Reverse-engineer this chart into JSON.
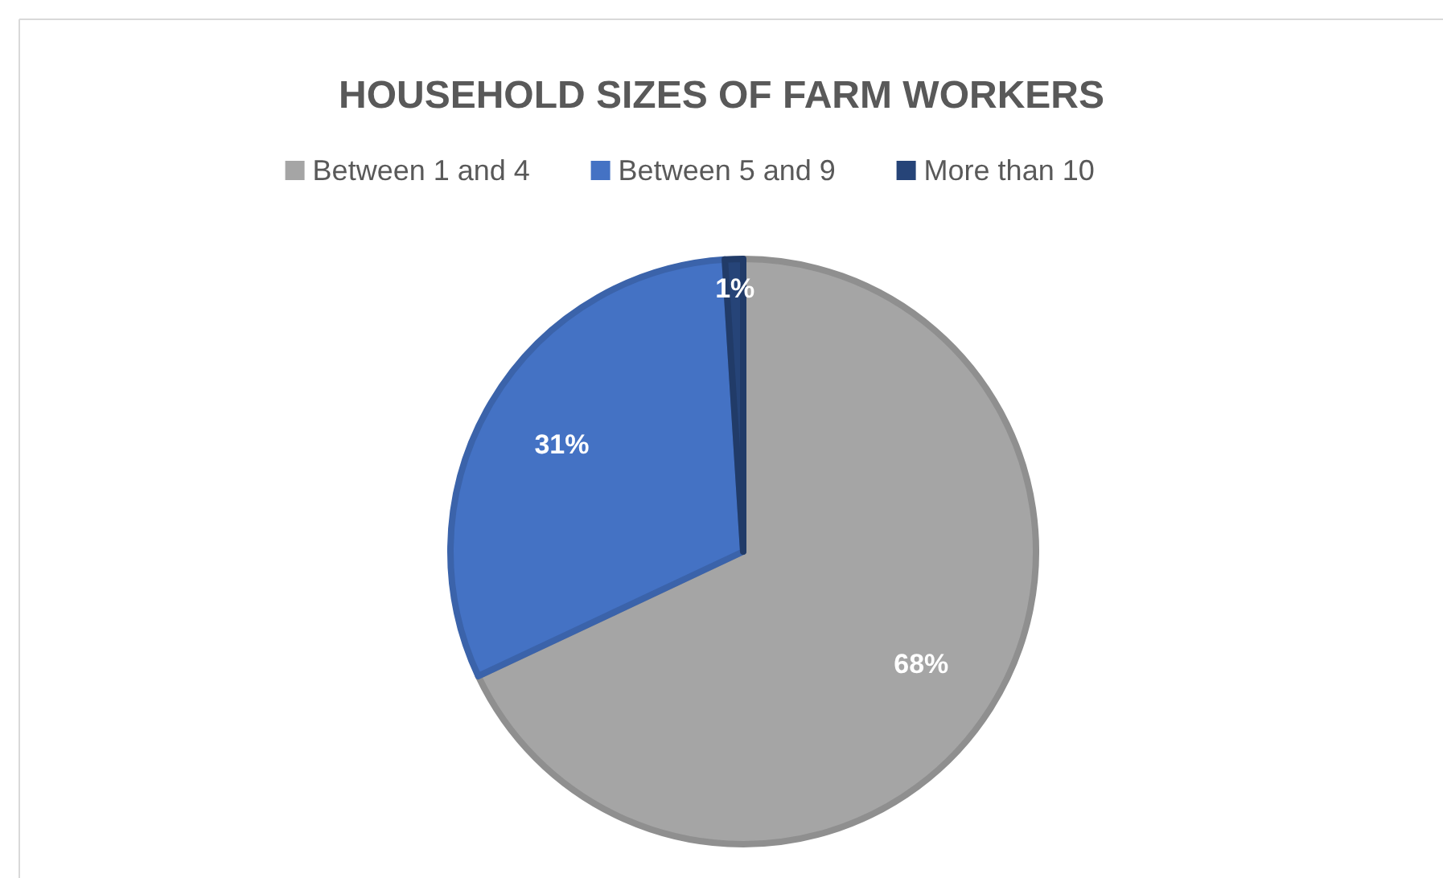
{
  "chart_data": {
    "type": "pie",
    "title": "HOUSEHOLD SIZES OF FARM WORKERS",
    "categories": [
      "Between 1 and 4",
      "Between 5 and 9",
      "More than 10"
    ],
    "values": [
      68,
      31,
      1
    ],
    "colors": [
      "#a5a5a5",
      "#4472c4",
      "#264478"
    ],
    "value_labels": [
      "68%",
      "31%",
      "1%"
    ],
    "legend": "top"
  }
}
